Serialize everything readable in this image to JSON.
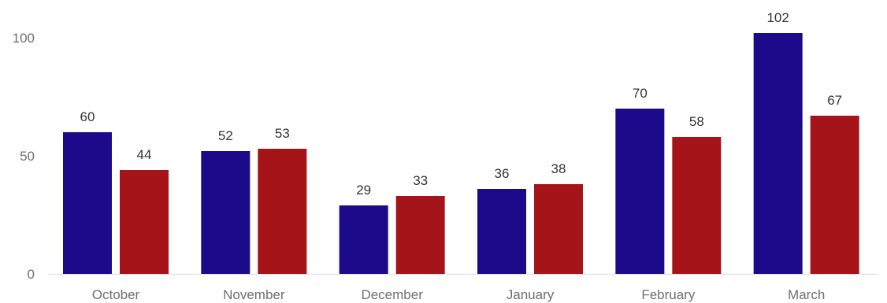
{
  "chart_data": {
    "type": "bar",
    "categories": [
      "October",
      "November",
      "December",
      "January",
      "February",
      "March"
    ],
    "series": [
      {
        "values": [
          60,
          52,
          29,
          36,
          70,
          102
        ],
        "color": "#1c0a8a"
      },
      {
        "values": [
          44,
          53,
          33,
          38,
          58,
          67
        ],
        "color": "#a51419"
      }
    ],
    "y_ticks": [
      0,
      50,
      100
    ],
    "ylim": [
      0,
      102
    ],
    "grid": false,
    "legend": "none",
    "baseline_color": "#e3e3e3",
    "title": "",
    "xlabel": "",
    "ylabel": ""
  }
}
